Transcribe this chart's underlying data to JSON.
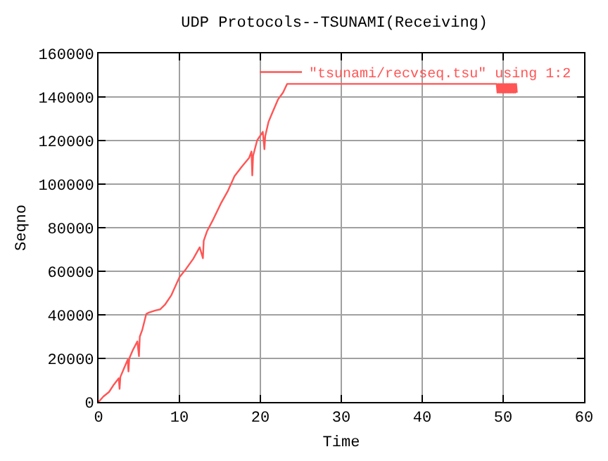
{
  "chart_data": {
    "type": "line",
    "title": "UDP Protocols--TSUNAMI(Receiving)",
    "xlabel": "Time",
    "ylabel": "Seqno",
    "xlim": [
      0,
      60
    ],
    "xticks": [
      0,
      10,
      20,
      30,
      40,
      50,
      60
    ],
    "ylim": [
      0,
      160000
    ],
    "yticks": [
      0,
      20000,
      40000,
      60000,
      80000,
      100000,
      120000,
      140000,
      160000
    ],
    "grid": true,
    "legend": "top right",
    "marker": "none",
    "line_style": "solid",
    "series": [
      {
        "name": "\"tsunami/recvseq.tsu\" using 1:2",
        "color": "#ff5555",
        "x": [
          0,
          0.6,
          1.3,
          1.9,
          2.5,
          2.6,
          2.7,
          3.1,
          3.6,
          3.7,
          3.8,
          4.2,
          4.8,
          5.0,
          5.1,
          5.4,
          5.9,
          6.2,
          7.0,
          7.6,
          8.2,
          9.0,
          10,
          10.8,
          11.7,
          12.5,
          12.9,
          13.0,
          13.4,
          14.2,
          15.1,
          16.0,
          16.8,
          17.7,
          18.6,
          18.9,
          19.0,
          19.1,
          19.6,
          20.3,
          20.5,
          20.6,
          21.0,
          21.5,
          22.2,
          22.8,
          23.3,
          24.2,
          49.2,
          49.3,
          49.4,
          49.5,
          49.6,
          49.7,
          49.8,
          49.9,
          50.0,
          50.1,
          50.2,
          50.3,
          50.4,
          50.5,
          50.6,
          50.7,
          50.8,
          50.9,
          51.0,
          51.1,
          51.2,
          51.3,
          51.4,
          51.5,
          51.6,
          51.7
        ],
        "values": [
          0,
          2500,
          4600,
          8000,
          10900,
          6000,
          11500,
          15000,
          19400,
          14000,
          20000,
          23500,
          27800,
          21000,
          30000,
          33000,
          40400,
          41000,
          42000,
          42500,
          44600,
          49000,
          57300,
          61000,
          65700,
          71000,
          66000,
          74000,
          78300,
          84000,
          91000,
          97000,
          103600,
          108000,
          112000,
          115000,
          104000,
          113000,
          120100,
          124000,
          116000,
          122000,
          128500,
          133000,
          139000,
          142000,
          146000,
          146000,
          146000,
          142000,
          146000,
          142000,
          146000,
          142000,
          146000,
          142000,
          146000,
          142000,
          146000,
          142000,
          146000,
          142000,
          146000,
          142000,
          146000,
          142000,
          146000,
          142000,
          146000,
          142000,
          146000,
          142000,
          146000,
          142000
        ]
      }
    ]
  }
}
